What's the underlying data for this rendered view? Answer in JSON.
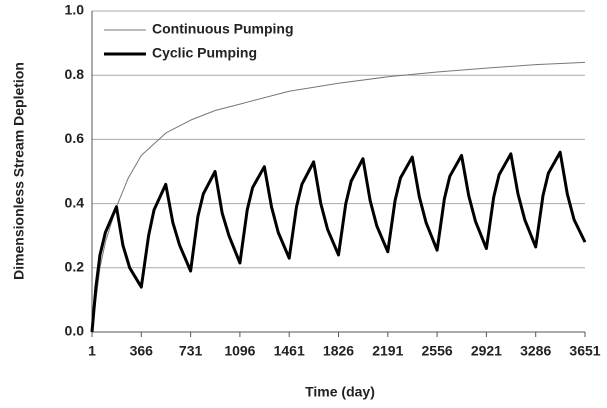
{
  "chart_data": {
    "type": "line",
    "xlabel": "Time (day)",
    "ylabel": "Dimensionless Stream Depletion",
    "xlim": [
      1,
      3651
    ],
    "xticks": [
      1,
      366,
      731,
      1096,
      1461,
      1826,
      2191,
      2556,
      2921,
      3286,
      3651
    ],
    "ylim": [
      0,
      1
    ],
    "yticks": [
      {
        "value": 0,
        "label": "0.0"
      },
      0.2,
      0.4,
      0.6,
      0.8,
      {
        "value": 1,
        "label": "1.0"
      }
    ],
    "grid": true,
    "legend": "upper left",
    "series": [
      {
        "name": "Continuous Pumping",
        "color": "#777777",
        "width": 1,
        "x": [
          1,
          30,
          60,
          100,
          182,
          270,
          366,
          548,
          731,
          913,
          1096,
          1461,
          1826,
          2191,
          2556,
          2921,
          3286,
          3651
        ],
        "values": [
          0,
          0.1,
          0.2,
          0.28,
          0.39,
          0.48,
          0.55,
          0.62,
          0.66,
          0.69,
          0.71,
          0.75,
          0.775,
          0.795,
          0.81,
          0.822,
          0.833,
          0.84
        ]
      },
      {
        "name": "Cyclic Pumping",
        "color": "#000000",
        "width": 3,
        "x": [
          1,
          30,
          60,
          100,
          182,
          230,
          280,
          366,
          420,
          460,
          547,
          600,
          650,
          731,
          785,
          825,
          912,
          965,
          1015,
          1096,
          1150,
          1190,
          1277,
          1330,
          1380,
          1461,
          1515,
          1555,
          1642,
          1695,
          1745,
          1826,
          1880,
          1920,
          2007,
          2060,
          2110,
          2191,
          2245,
          2285,
          2372,
          2425,
          2475,
          2556,
          2610,
          2650,
          2737,
          2790,
          2840,
          2921,
          2975,
          3015,
          3102,
          3155,
          3205,
          3286,
          3340,
          3380,
          3467,
          3520,
          3570,
          3651
        ],
        "values": [
          0,
          0.14,
          0.24,
          0.31,
          0.39,
          0.27,
          0.2,
          0.14,
          0.3,
          0.38,
          0.46,
          0.34,
          0.27,
          0.19,
          0.36,
          0.43,
          0.5,
          0.37,
          0.3,
          0.215,
          0.38,
          0.45,
          0.515,
          0.39,
          0.31,
          0.23,
          0.39,
          0.46,
          0.53,
          0.4,
          0.32,
          0.24,
          0.4,
          0.47,
          0.54,
          0.41,
          0.33,
          0.25,
          0.41,
          0.48,
          0.545,
          0.42,
          0.34,
          0.255,
          0.415,
          0.485,
          0.55,
          0.425,
          0.345,
          0.26,
          0.42,
          0.49,
          0.555,
          0.43,
          0.35,
          0.265,
          0.425,
          0.495,
          0.56,
          0.43,
          0.35,
          0.28
        ]
      }
    ]
  }
}
